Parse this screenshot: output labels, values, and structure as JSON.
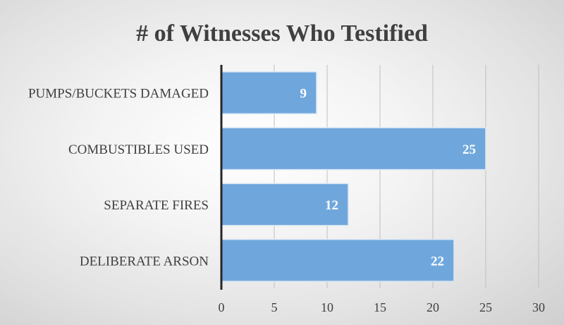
{
  "chart_data": {
    "type": "bar",
    "orientation": "horizontal",
    "title": "# of Witnesses Who Testified",
    "categories": [
      "PUMPS/BUCKETS DAMAGED",
      "COMBUSTIBLES USED",
      "SEPARATE FIRES",
      "DELIBERATE ARSON"
    ],
    "values": [
      9,
      25,
      12,
      22
    ],
    "xlim": [
      0,
      30
    ],
    "ticks": [
      0,
      5,
      10,
      15,
      20,
      25,
      30
    ],
    "xlabel": "",
    "ylabel": "",
    "grid": true,
    "legend": "none",
    "data_labels": true,
    "colors": {
      "bar": "#6fa7dc",
      "axis": "#262626",
      "grid": "#bfbfbf",
      "text": "#404040"
    }
  }
}
